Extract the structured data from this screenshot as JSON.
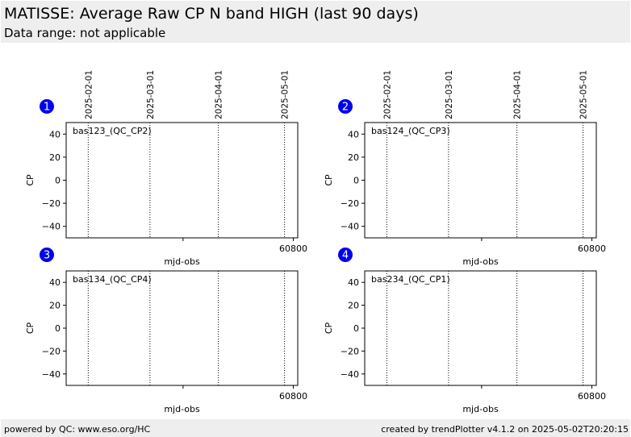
{
  "header": {
    "title": "MATISSE: Average Raw CP N band HIGH (last 90 days)",
    "subtitle": "Data range: not applicable"
  },
  "footer": {
    "left": "powered by QC: www.eso.org/HC",
    "right": "created by trendPlotter v4.1.2 on 2025-05-02T20:20:15"
  },
  "colors": {
    "badge": "#0000ee",
    "header_bg": "#eeeeee"
  },
  "chart_data": [
    {
      "type": "scatter",
      "badge": "1",
      "label": "bas123_(QC_CP2)",
      "xlabel": "mjd-obs",
      "ylabel": "CP",
      "xlim": [
        60697,
        60802
      ],
      "ylim": [
        -50,
        50
      ],
      "yticks": [
        40,
        20,
        0,
        -20,
        -40
      ],
      "ytick_labels": [
        "40",
        "20",
        "0",
        "−20",
        "−40"
      ],
      "xticks": [
        60750,
        60800
      ],
      "xtick_labels": [
        "",
        "60800"
      ],
      "date_markers": [
        {
          "x": 60707,
          "label": "2025-02-01"
        },
        {
          "x": 60735,
          "label": "2025-03-01"
        },
        {
          "x": 60766,
          "label": "2025-04-01"
        },
        {
          "x": 60796,
          "label": "2025-05-01"
        }
      ],
      "series": []
    },
    {
      "type": "scatter",
      "badge": "2",
      "label": "bas124_(QC_CP3)",
      "xlabel": "mjd-obs",
      "ylabel": "CP",
      "xlim": [
        60697,
        60802
      ],
      "ylim": [
        -50,
        50
      ],
      "yticks": [
        40,
        20,
        0,
        -20,
        -40
      ],
      "ytick_labels": [
        "40",
        "20",
        "0",
        "−20",
        "−40"
      ],
      "xticks": [
        60750,
        60800
      ],
      "xtick_labels": [
        "",
        "60800"
      ],
      "date_markers": [
        {
          "x": 60707,
          "label": "2025-02-01"
        },
        {
          "x": 60735,
          "label": "2025-03-01"
        },
        {
          "x": 60766,
          "label": "2025-04-01"
        },
        {
          "x": 60796,
          "label": "2025-05-01"
        }
      ],
      "series": []
    },
    {
      "type": "scatter",
      "badge": "3",
      "label": "bas134_(QC_CP4)",
      "xlabel": "mjd-obs",
      "ylabel": "CP",
      "xlim": [
        60697,
        60802
      ],
      "ylim": [
        -50,
        50
      ],
      "yticks": [
        40,
        20,
        0,
        -20,
        -40
      ],
      "ytick_labels": [
        "40",
        "20",
        "0",
        "−20",
        "−40"
      ],
      "xticks": [
        60750,
        60800
      ],
      "xtick_labels": [
        "",
        "60800"
      ],
      "date_markers": [
        {
          "x": 60707,
          "label": ""
        },
        {
          "x": 60735,
          "label": ""
        },
        {
          "x": 60766,
          "label": ""
        },
        {
          "x": 60796,
          "label": ""
        }
      ],
      "series": []
    },
    {
      "type": "scatter",
      "badge": "4",
      "label": "bas234_(QC_CP1)",
      "xlabel": "mjd-obs",
      "ylabel": "CP",
      "xlim": [
        60697,
        60802
      ],
      "ylim": [
        -50,
        50
      ],
      "yticks": [
        40,
        20,
        0,
        -20,
        -40
      ],
      "ytick_labels": [
        "40",
        "20",
        "0",
        "−20",
        "−40"
      ],
      "xticks": [
        60750,
        60800
      ],
      "xtick_labels": [
        "",
        "60800"
      ],
      "date_markers": [
        {
          "x": 60707,
          "label": ""
        },
        {
          "x": 60735,
          "label": ""
        },
        {
          "x": 60766,
          "label": ""
        },
        {
          "x": 60796,
          "label": ""
        }
      ],
      "series": []
    }
  ]
}
